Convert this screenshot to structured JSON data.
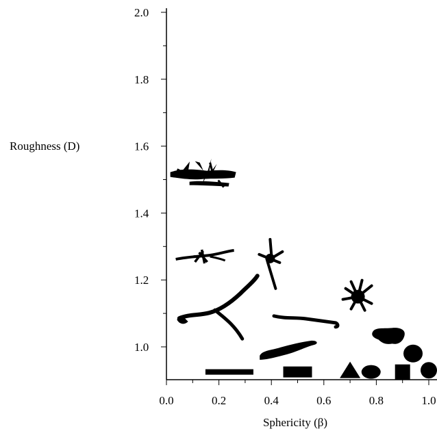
{
  "chart_data": {
    "type": "scatter",
    "xlabel": "Sphericity (β)",
    "ylabel": "Roughness (D)",
    "xlim": [
      0.0,
      1.0
    ],
    "ylim": [
      0.92,
      2.0
    ],
    "x_ticks": [
      "0.0",
      "0.2",
      "0.4",
      "0.6",
      "0.8",
      "1.0"
    ],
    "y_ticks": [
      "1.0",
      "1.2",
      "1.4",
      "1.6",
      "1.8",
      "2.0"
    ],
    "grid": false,
    "marker_color": "#000000",
    "points": [
      {
        "x": 0.14,
        "y": 1.51,
        "marker": "dendritic-crystal-icon"
      },
      {
        "x": 0.14,
        "y": 1.27,
        "marker": "branched-crystal-icon"
      },
      {
        "x": 0.19,
        "y": 1.11,
        "marker": "branched-chain-icon"
      },
      {
        "x": 0.39,
        "y": 1.26,
        "marker": "star-crystal-icon"
      },
      {
        "x": 0.53,
        "y": 1.08,
        "marker": "chain-icon"
      },
      {
        "x": 0.46,
        "y": 0.99,
        "marker": "elongated-blob-icon"
      },
      {
        "x": 0.73,
        "y": 1.15,
        "marker": "star-aggregate-icon"
      },
      {
        "x": 0.85,
        "y": 1.03,
        "marker": "rough-blob-icon"
      },
      {
        "x": 0.94,
        "y": 0.98,
        "marker": "rounded-blob-icon"
      },
      {
        "x": 0.24,
        "y": 0.925,
        "marker": "thin-bar-icon"
      },
      {
        "x": 0.5,
        "y": 0.925,
        "marker": "rectangle-icon"
      },
      {
        "x": 0.7,
        "y": 0.925,
        "marker": "triangle-icon"
      },
      {
        "x": 0.78,
        "y": 0.925,
        "marker": "ellipse-icon"
      },
      {
        "x": 0.9,
        "y": 0.925,
        "marker": "square-icon"
      },
      {
        "x": 1.0,
        "y": 0.93,
        "marker": "circle-icon"
      }
    ]
  }
}
